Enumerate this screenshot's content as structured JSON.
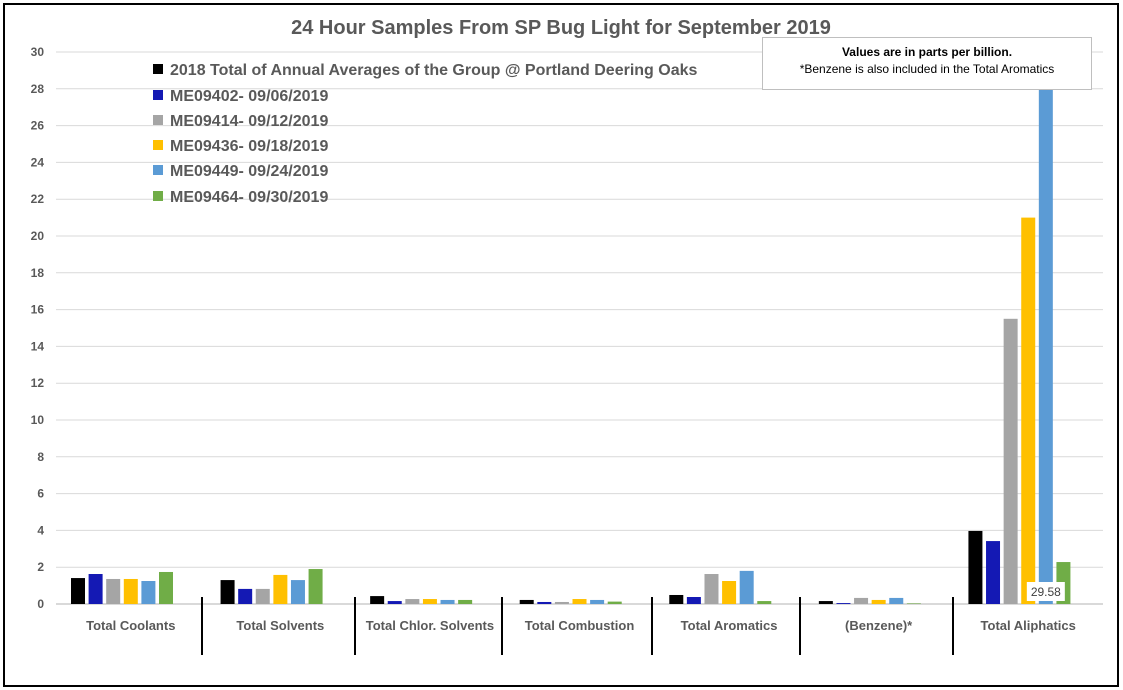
{
  "chart_data": {
    "type": "bar",
    "title": "24 Hour Samples From SP Bug Light for September 2019",
    "xlabel": "",
    "ylabel": "",
    "ylim": [
      0,
      30
    ],
    "yticks": [
      0,
      2,
      4,
      6,
      8,
      10,
      12,
      14,
      16,
      18,
      20,
      22,
      24,
      26,
      28,
      30
    ],
    "grid": true,
    "legend_position": "top-left",
    "categories": [
      "Total Coolants",
      "Total Solvents",
      "Total Chlor. Solvents",
      "Total Combustion",
      "Total Aromatics",
      "(Benzene)*",
      "Total Aliphatics"
    ],
    "series": [
      {
        "name": "2018 Total of Annual Averages of the Group @ Portland Deering Oaks",
        "color": "#000000",
        "values": [
          1.41,
          1.3,
          0.43,
          0.22,
          0.49,
          0.16,
          3.97
        ]
      },
      {
        "name": "ME09402- 09/06/2019",
        "color": "#1419b4",
        "values": [
          1.63,
          0.82,
          0.16,
          0.11,
          0.38,
          0.05,
          3.42
        ]
      },
      {
        "name": "ME09414- 09/12/2019",
        "color": "#a5a5a5",
        "values": [
          1.36,
          0.82,
          0.27,
          0.11,
          1.63,
          0.33,
          15.5
        ]
      },
      {
        "name": "ME09436- 09/18/2019",
        "color": "#ffc000",
        "values": [
          1.36,
          1.58,
          0.27,
          0.27,
          1.25,
          0.22,
          21.0
        ]
      },
      {
        "name": "ME09449- 09/24/2019",
        "color": "#5b9bd5",
        "values": [
          1.25,
          1.3,
          0.22,
          0.22,
          1.8,
          0.33,
          29.58
        ]
      },
      {
        "name": "ME09464- 09/30/2019",
        "color": "#70ad47",
        "values": [
          1.74,
          1.9,
          0.22,
          0.13,
          0.16,
          0.03,
          2.28
        ]
      }
    ],
    "data_labels": [
      {
        "series": "ME09449- 09/24/2019",
        "category": "Total Aliphatics",
        "text": "29.58"
      }
    ],
    "annotation": {
      "line1": "Values are in parts per billion.",
      "line2": "*Benzene is also included in the Total Aromatics"
    }
  }
}
